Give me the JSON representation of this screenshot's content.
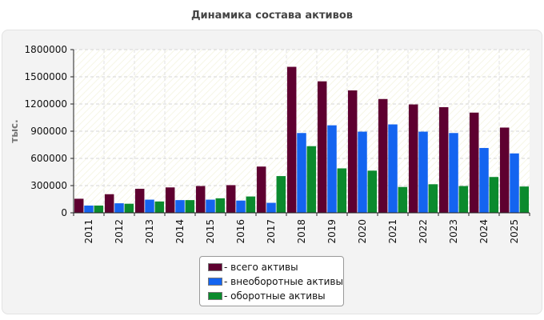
{
  "colors": {
    "total": "#5e0030",
    "noncurrent": "#1464f0",
    "current": "#0b8a2d"
  },
  "chart_data": {
    "type": "bar",
    "title": "Динамика состава активов",
    "ylabel": "тыс.",
    "xlabel": "",
    "ylim": [
      0,
      1800000
    ],
    "yticks": [
      0,
      300000,
      600000,
      900000,
      1200000,
      1500000,
      1800000
    ],
    "grid": true,
    "legend": "bottom-center",
    "categories": [
      "2011",
      "2012",
      "2013",
      "2014",
      "2015",
      "2016",
      "2017",
      "2018",
      "2019",
      "2020",
      "2021",
      "2022",
      "2023",
      "2024",
      "2025"
    ],
    "series": [
      {
        "name": "- всего активы",
        "values": [
          155000,
          205000,
          265000,
          280000,
          295000,
          305000,
          510000,
          1610000,
          1450000,
          1350000,
          1255000,
          1195000,
          1165000,
          1105000,
          940000
        ]
      },
      {
        "name": "- внеоборотные активы",
        "values": [
          80000,
          105000,
          145000,
          140000,
          145000,
          135000,
          110000,
          880000,
          965000,
          895000,
          975000,
          895000,
          880000,
          715000,
          655000
        ]
      },
      {
        "name": "- оборотные активы",
        "values": [
          80000,
          100000,
          125000,
          140000,
          160000,
          180000,
          405000,
          735000,
          490000,
          465000,
          285000,
          315000,
          295000,
          395000,
          290000
        ]
      }
    ]
  }
}
